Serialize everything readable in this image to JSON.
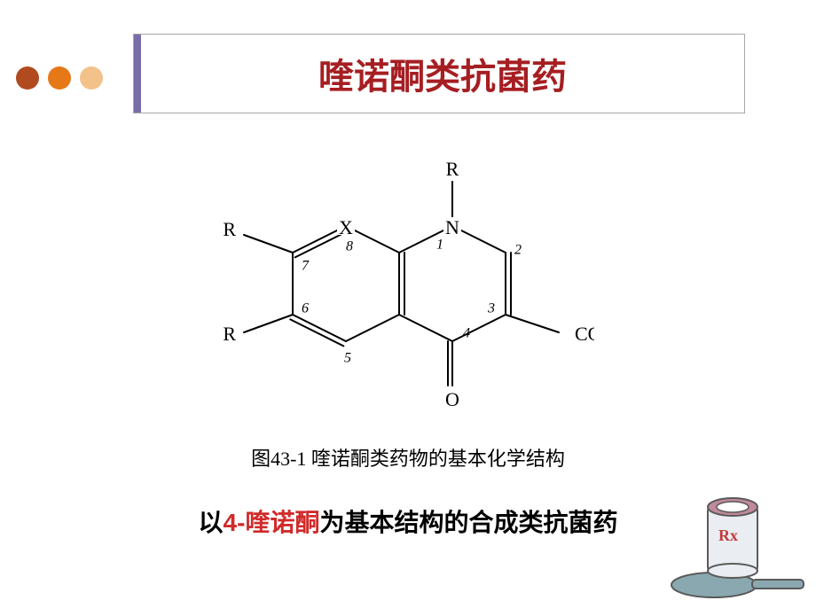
{
  "title": "喹诺酮类抗菌药",
  "title_color": "#a61e22",
  "title_fontsize": 40,
  "title_border_color": "#a6a6a6",
  "accent_color": "#7a6ca8",
  "dots": [
    {
      "size": 26,
      "color": "#b14a1e"
    },
    {
      "size": 26,
      "color": "#e67817"
    },
    {
      "size": 26,
      "color": "#f2c28a"
    }
  ],
  "structure": {
    "labels": {
      "R_top": "R",
      "R_left_upper": "R",
      "R_left_lower": "R",
      "X": "X",
      "N": "N",
      "O_double": "O",
      "COOH": "COOH",
      "n1": "1",
      "n2": "2",
      "n3": "3",
      "n4": "4",
      "n5": "5",
      "n6": "6",
      "n7": "7",
      "n8": "8"
    },
    "stroke_color": "#000000",
    "stroke_width": 2,
    "label_fontsize": 22,
    "num_fontsize": 16
  },
  "caption": "图43-1 喹诺酮类药物的基本化学结构",
  "caption_fontsize": 22,
  "caption_color": "#000000",
  "subtitle": {
    "prefix": "以",
    "highlight": "4-喹诺酮",
    "suffix": "为基本结构的合成类抗菌药",
    "fontsize": 28,
    "text_color": "#000000",
    "highlight_color": "#d12a2a"
  },
  "clipart": {
    "cup_body": "#eaeef2",
    "cup_rim": "#c08a9a",
    "cup_outline": "#5a5a5a",
    "spoon_color": "#8aa8b0",
    "rx_color": "#c43b3b"
  }
}
